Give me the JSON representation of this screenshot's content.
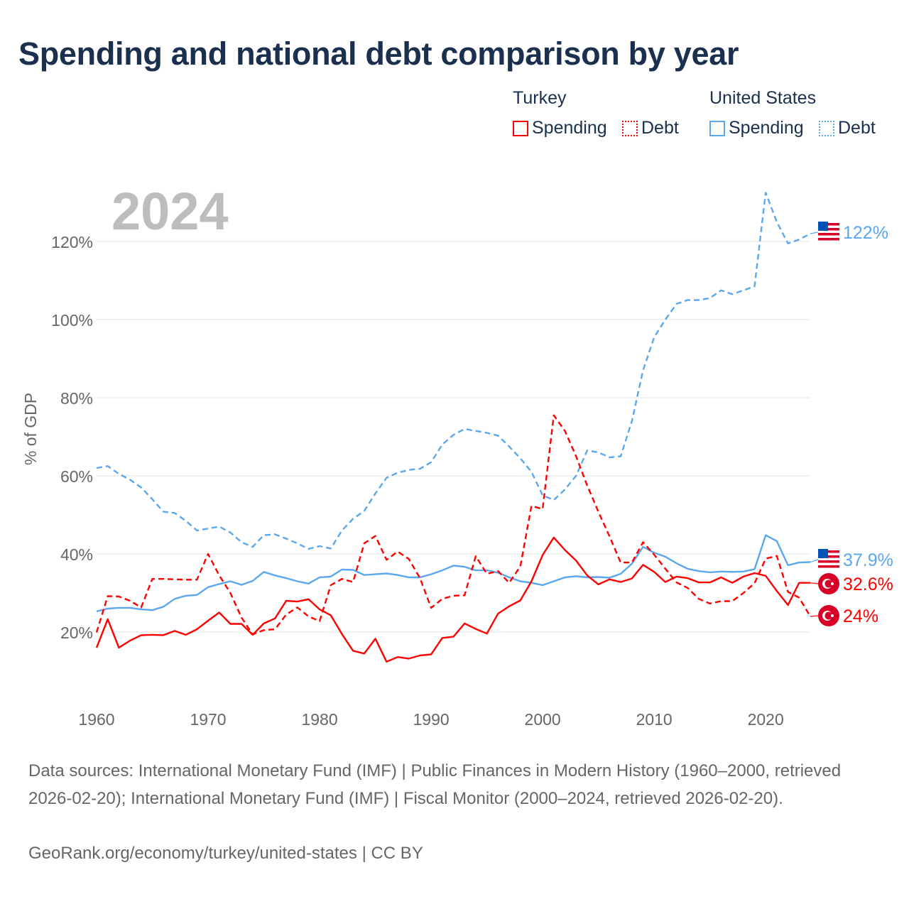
{
  "title": "Spending and national debt comparison by year",
  "legend": {
    "groups": [
      {
        "country": "Turkey",
        "items": [
          "Spending",
          "Debt"
        ]
      },
      {
        "country": "United States",
        "items": [
          "Spending",
          "Debt"
        ]
      }
    ]
  },
  "colors": {
    "turkey": "#ff0000",
    "us": "#5ba7ee",
    "title": "#1b2f4e",
    "year": "#bdbdbd"
  },
  "chart_data": {
    "type": "line",
    "year_label": "2024",
    "ylabel": "% of GDP",
    "xlim": [
      1960,
      2024
    ],
    "ylim": [
      0,
      135
    ],
    "yticks": [
      20,
      40,
      60,
      80,
      100,
      120
    ],
    "ytick_labels": [
      "20%",
      "40%",
      "60%",
      "80%",
      "100%",
      "120%"
    ],
    "xticks": [
      1960,
      1970,
      1980,
      1990,
      2000,
      2010,
      2020
    ],
    "xtick_labels": [
      "1960",
      "1970",
      "1980",
      "1990",
      "2000",
      "2010",
      "2020"
    ],
    "x_start": 1960,
    "series": [
      {
        "name": "United States Debt",
        "country": "us",
        "style": "dashed",
        "end_label": "122%",
        "values": [
          62,
          62.5,
          60.5,
          59,
          57,
          54,
          50.8,
          50.5,
          48.5,
          46,
          46.5,
          47,
          45.5,
          43,
          41.8,
          44.8,
          45,
          43.9,
          42.7,
          41.3,
          42,
          41.4,
          46,
          49,
          51,
          55.5,
          59.5,
          60.8,
          61.5,
          61.8,
          63.5,
          68,
          70.5,
          72,
          71.5,
          71,
          70.3,
          67.5,
          64.5,
          61,
          55,
          53.8,
          56.5,
          60,
          66.5,
          66,
          64.7,
          65,
          74,
          87,
          95.5,
          100,
          104,
          105,
          105,
          105.5,
          107.5,
          106.5,
          107.5,
          108.5,
          132.5,
          125,
          119.5,
          120.5,
          122
        ]
      },
      {
        "name": "United States Spending",
        "country": "us",
        "style": "solid",
        "end_label": "37.9%",
        "values": [
          25.3,
          26,
          26.2,
          26.2,
          25.8,
          25.6,
          26.5,
          28.5,
          29.3,
          29.5,
          31.5,
          32.3,
          33,
          32.1,
          33.1,
          35.4,
          34.5,
          33.8,
          33,
          32.4,
          34,
          34.2,
          36,
          35.9,
          34.6,
          34.8,
          35,
          34.6,
          34,
          34,
          34.8,
          35.8,
          37,
          36.7,
          35.8,
          35.8,
          35.2,
          34,
          33,
          32.6,
          32,
          33,
          34,
          34.3,
          34,
          34.1,
          33.9,
          34.9,
          37.5,
          41.8,
          40.3,
          39.3,
          37.6,
          36.2,
          35.6,
          35.3,
          35.5,
          35.4,
          35.5,
          36.1,
          44.8,
          43.3,
          37.1,
          37.8,
          37.9
        ]
      },
      {
        "name": "Turkey Spending",
        "country": "turkey",
        "style": "solid",
        "end_label": "32.6%",
        "values": [
          16,
          23.3,
          16,
          17.8,
          19.2,
          19.3,
          19.2,
          20.3,
          19.3,
          20.7,
          22.9,
          25,
          22.1,
          22.1,
          19.3,
          22.2,
          23.5,
          28,
          27.8,
          28.4,
          25.8,
          24.3,
          19.5,
          15.2,
          14.5,
          18.3,
          12.4,
          13.6,
          13.2,
          14,
          14.3,
          18.5,
          18.8,
          22.2,
          20.8,
          19.6,
          24.7,
          26.6,
          28.1,
          33,
          39.7,
          44.2,
          41,
          38.3,
          34.5,
          32.2,
          33.5,
          32.8,
          33.7,
          37.2,
          35.4,
          32.8,
          34.2,
          33.8,
          32.7,
          32.7,
          34,
          32.6,
          34.2,
          35.1,
          34.4,
          30.5,
          26.9,
          32.6,
          32.6
        ]
      },
      {
        "name": "Turkey Debt",
        "country": "turkey",
        "style": "dashed",
        "end_label": "24%",
        "values": [
          19.9,
          29.2,
          29.1,
          28,
          26.3,
          33.6,
          33.6,
          33.5,
          33.4,
          33.4,
          40,
          34.5,
          30,
          23.7,
          19.4,
          20.5,
          20.7,
          24.5,
          26.3,
          24,
          22.8,
          32,
          33.6,
          32.8,
          42.7,
          44.6,
          38.5,
          40.6,
          38.7,
          33.8,
          26.2,
          28.5,
          29.3,
          29.4,
          39.4,
          34.9,
          35.6,
          32.6,
          36.8,
          52.3,
          51.5,
          75.5,
          71.5,
          65,
          57.5,
          50.8,
          44.5,
          37.8,
          37.8,
          43,
          39.8,
          36.2,
          32.7,
          31.3,
          28.5,
          27.3,
          27.9,
          27.9,
          30,
          32.5,
          38.8,
          39.5,
          30.3,
          28.8,
          24
        ]
      }
    ]
  },
  "footer": {
    "sources": "Data sources: International Monetary Fund (IMF) | Public Finances in Modern History (1960–2000, retrieved 2026-02-20); International Monetary Fund (IMF) | Fiscal Monitor (2000–2024, retrieved 2026-02-20).",
    "credit": "GeoRank.org/economy/turkey/united-states | CC BY"
  }
}
